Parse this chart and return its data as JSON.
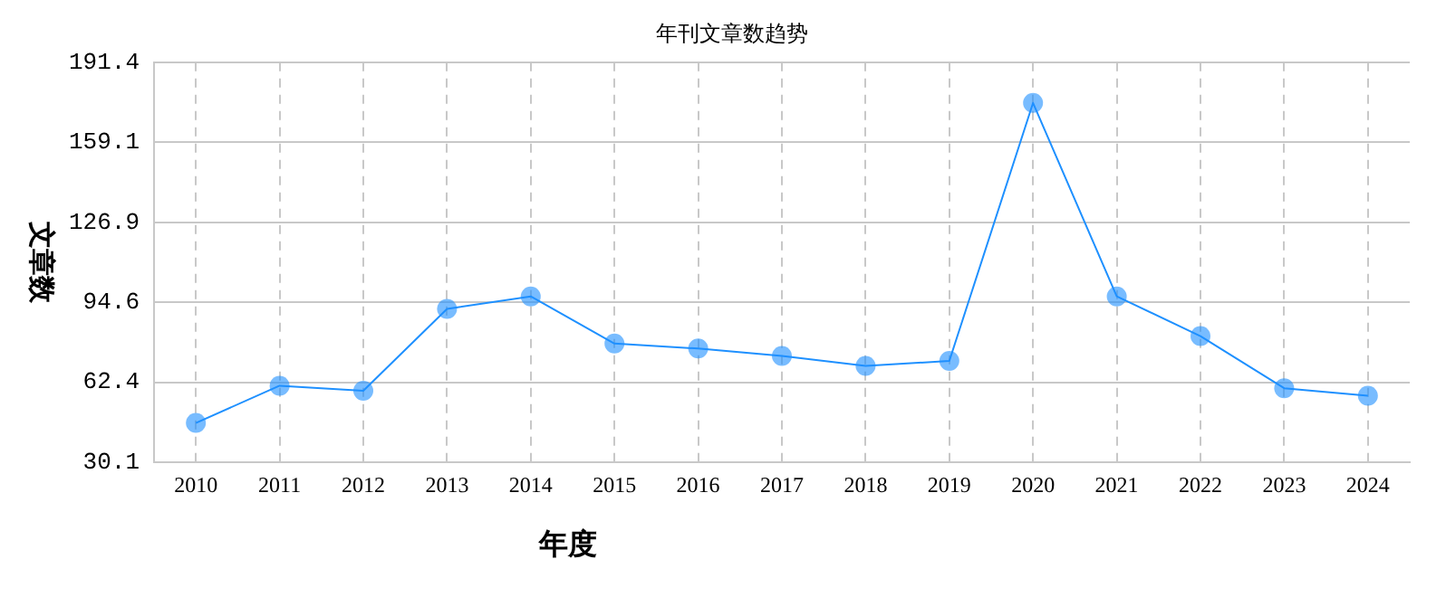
{
  "chart_data": {
    "type": "line",
    "title": "年刊文章数趋势",
    "xlabel": "年度",
    "ylabel": "文章数",
    "categories": [
      "2010",
      "2011",
      "2012",
      "2013",
      "2014",
      "2015",
      "2016",
      "2017",
      "2018",
      "2019",
      "2020",
      "2021",
      "2022",
      "2023",
      "2024"
    ],
    "series": [
      {
        "color": "#1e90ff",
        "values": [
          46,
          61,
          59,
          92,
          97,
          78,
          76,
          73,
          69,
          71,
          175,
          97,
          81,
          60,
          57
        ]
      }
    ],
    "ylim": [
      30.1,
      191.4
    ],
    "yticks": [
      30.1,
      62.4,
      94.6,
      126.9,
      159.1,
      191.4
    ],
    "grid": true,
    "marker": "circle",
    "line_style": "solid",
    "legend": false
  }
}
